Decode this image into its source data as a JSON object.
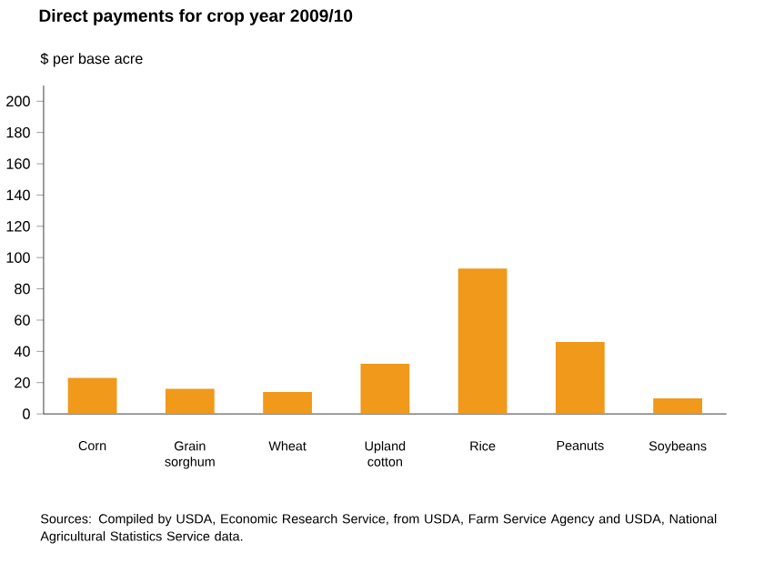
{
  "chart_data": {
    "type": "bar",
    "title": "Direct payments for crop year 2009/10",
    "ylabel": "$ per base acre",
    "categories": [
      "Corn",
      "Grain sorghum",
      "Wheat",
      "Upland cotton",
      "Rice",
      "Peanuts",
      "Soybeans"
    ],
    "values": [
      23,
      16,
      14,
      32,
      93,
      46,
      10
    ],
    "color": "#f0991a",
    "ylim": [
      0,
      210
    ],
    "yticks": [
      0,
      20,
      40,
      60,
      80,
      100,
      120,
      140,
      160,
      180,
      200
    ],
    "annotations": [
      "Sources: Compiled by USDA, Economic Research Service, from USDA, Farm Service Agency and USDA, National Agricultural Statistics Service data."
    ]
  }
}
